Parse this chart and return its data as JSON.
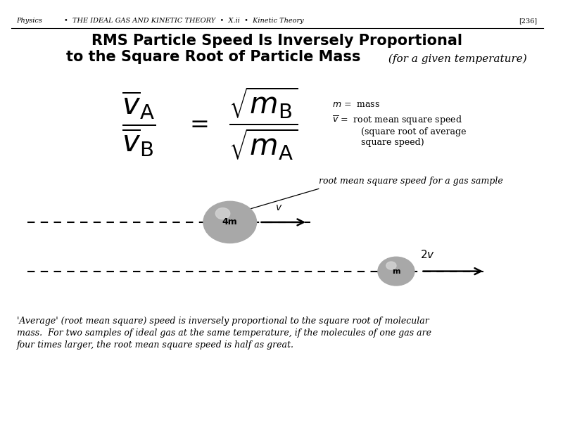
{
  "bg_color": "#ffffff",
  "header_physics": "Physics",
  "header_rest": "•  THE IDEAL GAS AND KINETIC THEORY  •  X.ii  •  Kinetic Theory",
  "page_num": "[236]",
  "title_line1": "RMS Particle Speed Is Inversely Proportional",
  "title_line2": "to the Square Root of Particle Mass",
  "title_italic": " (for a given temperature)",
  "annotation": "root mean square speed for a gas sample",
  "ball1_label": "4m",
  "ball1_v": "$v$",
  "ball2_label": "m",
  "ball2_v": "2v",
  "footer_line1": "'Average' (root mean square) speed is inversely proportional to the square root of molecular",
  "footer_line2": "mass.  For two samples of ideal gas at the same temperature, if the molecules of one gas are",
  "footer_line3": "four times larger, the root mean square speed is half as great."
}
